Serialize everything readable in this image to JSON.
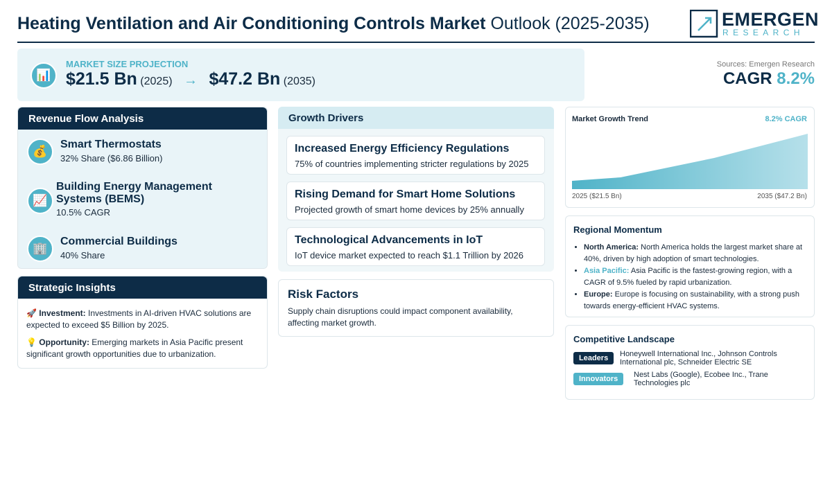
{
  "header": {
    "title_bold": "Heating Ventilation and Air Conditioning Controls Market",
    "title_rest": "Outlook (2025-2035)",
    "logo": {
      "name": "EMERGEN",
      "sub": "RESEARCH"
    }
  },
  "projection": {
    "icon": "📊",
    "label": "MARKET SIZE PROJECTION",
    "start_value": "$21.5 Bn",
    "start_year": "(2025)",
    "arrow": "→",
    "end_value": "$47.2 Bn",
    "end_year": "(2035)"
  },
  "sources": "Sources: Emergen Research",
  "cagr": {
    "label": "CAGR",
    "value": "8.2%"
  },
  "revenue_flow": {
    "title": "Revenue Flow Analysis",
    "items": [
      {
        "icon": "💰",
        "name": "Smart Thermostats",
        "detail": "32% Share ($6.86 Billion)"
      },
      {
        "icon": "📈",
        "name": "Building Energy Management Systems (BEMS)",
        "detail": "10.5% CAGR"
      },
      {
        "icon": "🏢",
        "name": "Commercial Buildings",
        "detail": "40% Share"
      }
    ]
  },
  "strategic_insights": {
    "title": "Strategic Insights",
    "items": [
      {
        "icon": "🚀",
        "label": "Investment:",
        "text": "Investments in AI-driven HVAC solutions are expected to exceed $5 Billion by 2025."
      },
      {
        "icon": "💡",
        "label": "Opportunity:",
        "text": "Emerging markets in Asia Pacific present significant growth opportunities due to urbanization."
      }
    ]
  },
  "growth_drivers": {
    "title": "Growth Drivers",
    "items": [
      {
        "title": "Increased Energy Efficiency Regulations",
        "text": "75% of countries implementing stricter regulations by 2025"
      },
      {
        "title": "Rising Demand for Smart Home Solutions",
        "text": "Projected growth of smart home devices by 25% annually"
      },
      {
        "title": "Technological Advancements in IoT",
        "text": "IoT device market expected to reach $1.1 Trillion by 2026"
      }
    ]
  },
  "risk_factors": {
    "title": "Risk Factors",
    "text": "Supply chain disruptions could impact component availability, affecting market growth."
  },
  "trend": {
    "title": "Market Growth Trend",
    "cagr": "8.2% CAGR",
    "start_label": "2025 ($21.5 Bn)",
    "end_label": "2035 ($47.2 Bn)"
  },
  "regional": {
    "title": "Regional Momentum",
    "items": [
      {
        "region": "North America:",
        "text": "North America holds the largest market share at 40%, driven by high adoption of smart technologies."
      },
      {
        "region": "Asia Pacific:",
        "text": "Asia Pacific is the fastest-growing region, with a CAGR of 9.5% fueled by rapid urbanization."
      },
      {
        "region": "Europe:",
        "text": "Europe is focusing on sustainability, with a strong push towards energy-efficient HVAC systems."
      }
    ]
  },
  "competitive": {
    "title": "Competitive Landscape",
    "items": [
      {
        "label": "Leaders",
        "companies": "Honeywell International Inc., Johnson Controls International plc, Schneider Electric SE"
      },
      {
        "label": "Innovators",
        "companies": "Nest Labs (Google), Ecobee Inc., Trane Technologies plc"
      }
    ]
  }
}
